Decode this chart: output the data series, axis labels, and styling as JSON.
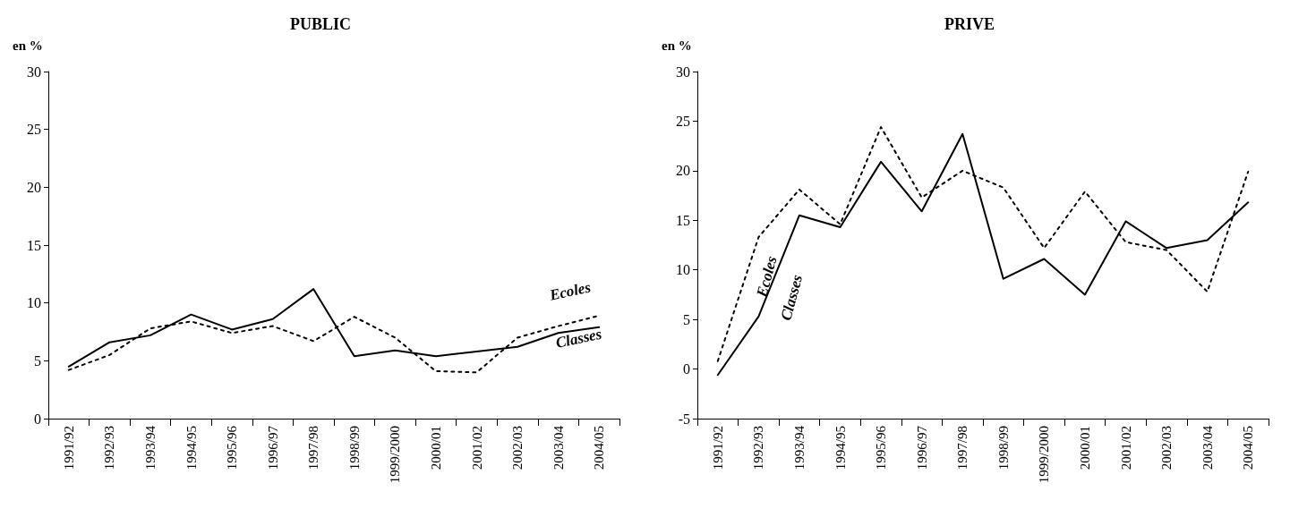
{
  "chart_data": [
    {
      "type": "line",
      "title": "PUBLIC",
      "ylabel": "en %",
      "categories": [
        "1991/92",
        "1992/93",
        "1993/94",
        "1994/95",
        "1995/96",
        "1996/97",
        "1997/98",
        "1998/99",
        "1999/2000",
        "2000/01",
        "2001/02",
        "2002/03",
        "2003/04",
        "2004/05"
      ],
      "series": [
        {
          "name": "Ecoles",
          "color": "#000000",
          "line_style": "dotted",
          "values": [
            4.2,
            5.5,
            7.8,
            8.4,
            7.4,
            8.0,
            6.7,
            8.8,
            7.0,
            4.1,
            4.0,
            7.0,
            8.0,
            8.9
          ]
        },
        {
          "name": "Classes",
          "color": "#000000",
          "line_style": "solid",
          "values": [
            4.5,
            6.6,
            7.2,
            9.0,
            7.7,
            8.6,
            11.2,
            5.4,
            5.9,
            5.4,
            5.8,
            6.2,
            7.4,
            7.9
          ]
        }
      ],
      "ylim": [
        0,
        30
      ],
      "yticks": [
        0,
        5,
        10,
        15,
        20,
        25,
        30
      ],
      "grid": false,
      "legend": false,
      "marker": "none"
    },
    {
      "type": "line",
      "title": "PRIVE",
      "ylabel": "en %",
      "categories": [
        "1991/92",
        "1992/93",
        "1993/94",
        "1994/95",
        "1995/96",
        "1996/97",
        "1997/98",
        "1998/99",
        "1999/2000",
        "2000/01",
        "2001/02",
        "2002/03",
        "2003/04",
        "2004/05"
      ],
      "series": [
        {
          "name": "Ecoles",
          "color": "#000000",
          "line_style": "dotted",
          "values": [
            0.8,
            13.3,
            18.1,
            14.6,
            24.4,
            17.3,
            20.0,
            18.3,
            12.2,
            17.9,
            12.8,
            12.0,
            7.8,
            19.9
          ]
        },
        {
          "name": "Classes",
          "color": "#000000",
          "line_style": "solid",
          "values": [
            -0.6,
            5.3,
            15.5,
            14.3,
            20.9,
            15.9,
            23.7,
            9.1,
            11.1,
            7.5,
            14.9,
            12.2,
            13.0,
            16.8
          ]
        }
      ],
      "ylim": [
        -5,
        30
      ],
      "yticks": [
        -5,
        0,
        5,
        10,
        15,
        20,
        25,
        30
      ],
      "grid": false,
      "legend": false,
      "marker": "none"
    }
  ]
}
